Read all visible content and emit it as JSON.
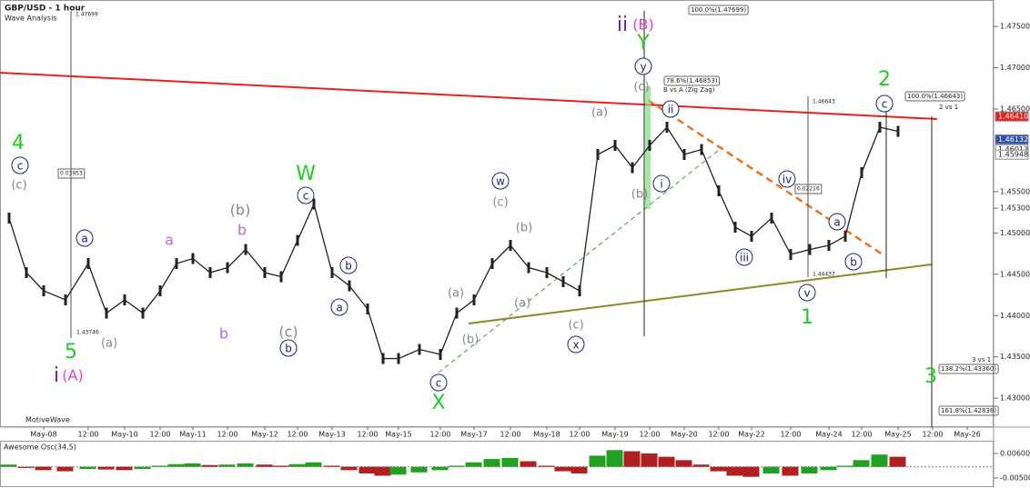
{
  "header": {
    "title": "GBP/USD - 1 hour",
    "subtitle": "Wave Analysis",
    "brand": "MotiveWave"
  },
  "chart_data": [
    {
      "type": "line",
      "color": "#222222",
      "categories": [
        null,
        null,
        "May-08",
        null,
        "12:00",
        null,
        "May-10",
        null,
        "12:00",
        null,
        "May-11",
        null,
        "12:00",
        null,
        "May-12",
        null,
        "12:00",
        null,
        "May-13",
        null,
        "12:00",
        null,
        "May-15",
        null,
        "12:00",
        null,
        "May-17",
        null,
        "12:00",
        null,
        "May-18",
        null,
        "12:00",
        null,
        "May-19",
        null,
        "12:00",
        null,
        "May-20",
        null,
        "12:00",
        null,
        "May-22",
        null,
        "12:00",
        null,
        "May-24",
        null,
        "12:00",
        null,
        "May-25",
        "12:00",
        "May-26"
      ],
      "values": [
        1.4518,
        1.4452,
        1.443,
        1.4419,
        1.4463,
        1.4403,
        1.4419,
        1.4403,
        1.443,
        1.4463,
        1.4469,
        1.4452,
        1.4458,
        1.448,
        1.4452,
        1.4447,
        1.4491,
        1.4535,
        1.4452,
        1.4436,
        1.4408,
        1.4348,
        1.4348,
        1.4359,
        1.4353,
        1.4403,
        1.4419,
        1.4463,
        1.4485,
        1.4458,
        1.4452,
        1.4441,
        1.443,
        1.4595,
        1.4606,
        1.4579,
        1.4606,
        1.4628,
        1.4595,
        1.4601,
        1.4551,
        1.4507,
        1.4496,
        1.4518,
        1.4474,
        1.448,
        1.4485,
        1.4496,
        1.4573,
        1.4628,
        1.4623,
        null,
        null
      ],
      "ylim": [
        1.4265,
        1.4782
      ],
      "yticks": [
        {
          "value": 1.43,
          "label": "1.43000"
        },
        {
          "value": 1.435,
          "label": "1.43500"
        },
        {
          "value": 1.44,
          "label": "1.44000"
        },
        {
          "value": 1.445,
          "label": "1.44500"
        },
        {
          "value": 1.45,
          "label": "1.45000"
        },
        {
          "value": 1.453,
          "label": "1.45300"
        },
        {
          "value": 1.455,
          "label": "1.45500"
        },
        {
          "value": 1.465,
          "label": "1.46500"
        },
        {
          "value": 1.47,
          "label": "1.47000"
        },
        {
          "value": 1.475,
          "label": "1.47500"
        }
      ],
      "price_labels": [
        {
          "value": 1.4641,
          "label": "1.46410"
        },
        {
          "value": 1.46132,
          "label": "1.46132"
        },
        {
          "value": 1.46013,
          "label": "1.46013"
        },
        {
          "value": 1.45948,
          "label": "1.45948"
        }
      ]
    },
    {
      "type": "bar",
      "title": "Awesome Osc(34,5)",
      "values": [
        0.001,
        -0.0005,
        -0.0015,
        -0.002,
        -0.001,
        -0.0012,
        -0.0015,
        -0.001,
        0.0005,
        0.0012,
        0.0015,
        0.0008,
        0.001,
        0.0015,
        0.001,
        0.0005,
        0.0012,
        0.002,
        0.0005,
        -0.0015,
        -0.003,
        -0.004,
        -0.0035,
        -0.0025,
        -0.0015,
        0.0005,
        0.002,
        0.0035,
        0.004,
        0.0025,
        0.0005,
        -0.002,
        -0.003,
        0.005,
        0.0075,
        0.007,
        0.006,
        0.0045,
        0.003,
        0.001,
        -0.002,
        -0.004,
        -0.0045,
        -0.003,
        -0.004,
        -0.003,
        -0.0015,
        0.0005,
        0.003,
        0.0055,
        0.0045,
        null,
        null
      ],
      "ylim": [
        -0.0083,
        0.0113
      ],
      "yticks": [
        {
          "value": 0.006,
          "label": "0.00600"
        },
        {
          "value": -0.005,
          "label": "-0.00500"
        }
      ]
    }
  ],
  "annotations": [
    "4",
    "c",
    "(c)",
    "5",
    "i",
    "(A)",
    "a",
    "(a)",
    "a",
    "b",
    "(b)",
    "b",
    "W",
    "c",
    "(c)",
    "b",
    "a",
    "b",
    "c",
    "X",
    "(a)",
    "(b)",
    "w",
    "(c)",
    "(b)",
    "(a)",
    "(c)",
    "x",
    "ii",
    "(B)",
    "Y",
    "y",
    "(c)",
    "(a)",
    "ii",
    "(b)",
    "i",
    "iii",
    "iv",
    "v",
    "1",
    "a",
    "b",
    "2",
    "c",
    "3"
  ],
  "levels": [
    "100.0%(1.47699)",
    "78.6%(1.46853)",
    "B vs A (Zig Zag)",
    "100.0%(1.46643)",
    "2 vs 1",
    "3 vs 1",
    "138.2%(1.43360)",
    "161.8%(1.42838)"
  ],
  "measures": [
    "1.47699",
    "0.03953",
    "1.43746",
    "1.46643",
    "0.02216",
    "1.44437"
  ]
}
